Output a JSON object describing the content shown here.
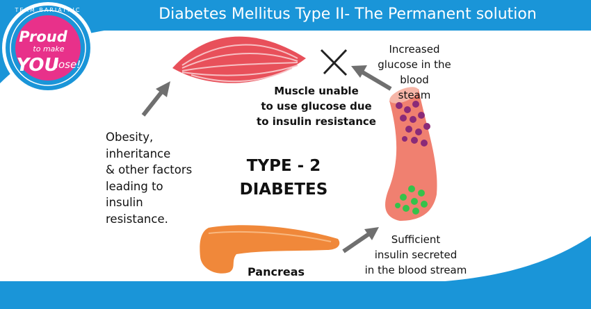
{
  "header": {
    "title": "Diabetes Mellitus Type II- The Permanent solution"
  },
  "badge": {
    "team": "TEAM BARIATRIC",
    "line1": "Proud",
    "line2": "to make",
    "line3": "YOU",
    "line4": "lose!"
  },
  "diagram": {
    "center_title_1": "TYPE - 2",
    "center_title_2": "DIABETES",
    "muscle_note": [
      "Muscle unable",
      "to use glucose due",
      "to insulin resistance"
    ],
    "glucose_note": [
      "Increased",
      "glucose in the",
      "blood",
      "steam"
    ],
    "insulin_note": [
      "Sufficient",
      "insulin secreted",
      "in the blood stream"
    ],
    "left_note": [
      "Obesity,",
      "inheritance",
      "& other factors",
      "leading to",
      "insulin",
      "resistance."
    ],
    "pancreas_label": "Pancreas"
  },
  "colors": {
    "brand_blue": "#1a95d8",
    "muscle_red": "#e8505a",
    "vessel_pink": "#f08070",
    "glucose_purple": "#8a2a78",
    "insulin_green": "#36c24a",
    "pancreas_orange": "#f0883a",
    "arrow_gray": "#6f6f6f"
  }
}
